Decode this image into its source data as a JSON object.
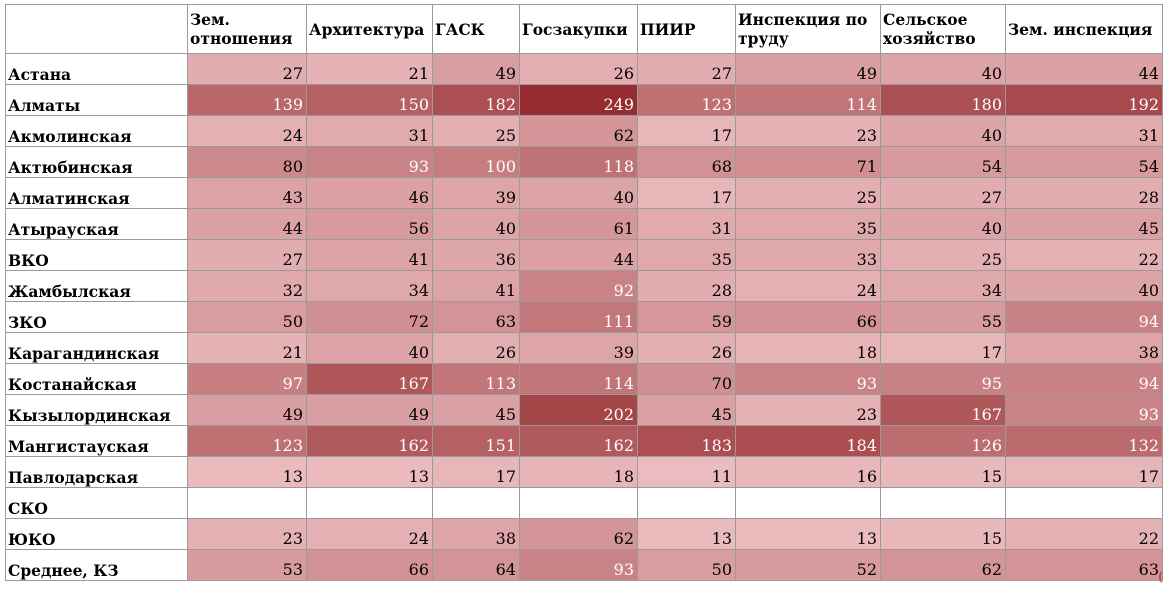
{
  "table": {
    "corner": "",
    "columns": [
      "Зем. отношения",
      "Архитектура",
      "ГАСК",
      "Госзакупки",
      "ПИИР",
      "Инспекция по труду",
      "Сельское хозяйство",
      "Зем. инспекция"
    ],
    "rows": [
      {
        "label": "Астана",
        "values": [
          27,
          21,
          49,
          26,
          27,
          49,
          40,
          44
        ]
      },
      {
        "label": "Алматы",
        "values": [
          139,
          150,
          182,
          249,
          123,
          114,
          180,
          192
        ]
      },
      {
        "label": "Акмолинская",
        "values": [
          24,
          31,
          25,
          62,
          17,
          23,
          40,
          31
        ]
      },
      {
        "label": "Актюбинская",
        "values": [
          80,
          93,
          100,
          118,
          68,
          71,
          54,
          54
        ]
      },
      {
        "label": "Алматинская",
        "values": [
          43,
          46,
          39,
          40,
          17,
          25,
          27,
          28
        ]
      },
      {
        "label": "Атырауская",
        "values": [
          44,
          56,
          40,
          61,
          31,
          35,
          40,
          45
        ]
      },
      {
        "label": "ВКО",
        "values": [
          27,
          41,
          36,
          44,
          35,
          33,
          25,
          22
        ]
      },
      {
        "label": "Жамбылская",
        "values": [
          32,
          34,
          41,
          92,
          28,
          24,
          34,
          40
        ]
      },
      {
        "label": "ЗКО",
        "values": [
          50,
          72,
          63,
          111,
          59,
          66,
          55,
          94
        ]
      },
      {
        "label": "Карагандинская",
        "values": [
          21,
          40,
          26,
          39,
          26,
          18,
          17,
          38
        ]
      },
      {
        "label": "Костанайская",
        "values": [
          97,
          167,
          113,
          114,
          70,
          93,
          95,
          94
        ]
      },
      {
        "label": "Кызылординская",
        "values": [
          49,
          49,
          45,
          202,
          45,
          23,
          167,
          93
        ]
      },
      {
        "label": "Мангистауская",
        "values": [
          123,
          162,
          151,
          162,
          183,
          184,
          126,
          132
        ]
      },
      {
        "label": "Павлодарская",
        "values": [
          13,
          13,
          17,
          18,
          11,
          16,
          15,
          17
        ]
      },
      {
        "label": "СКО",
        "values": [
          "",
          "",
          "",
          "",
          "",
          "",
          "",
          ""
        ]
      },
      {
        "label": "ЮКО",
        "values": [
          23,
          24,
          38,
          62,
          13,
          13,
          15,
          22
        ]
      },
      {
        "label": "Среднее, КЗ",
        "values": [
          53,
          66,
          64,
          93,
          50,
          52,
          62,
          63
        ]
      }
    ]
  },
  "heatmap_colors": {
    "low": "#ebbcbf",
    "high": "#962c2f",
    "blank": "#ffffff"
  }
}
